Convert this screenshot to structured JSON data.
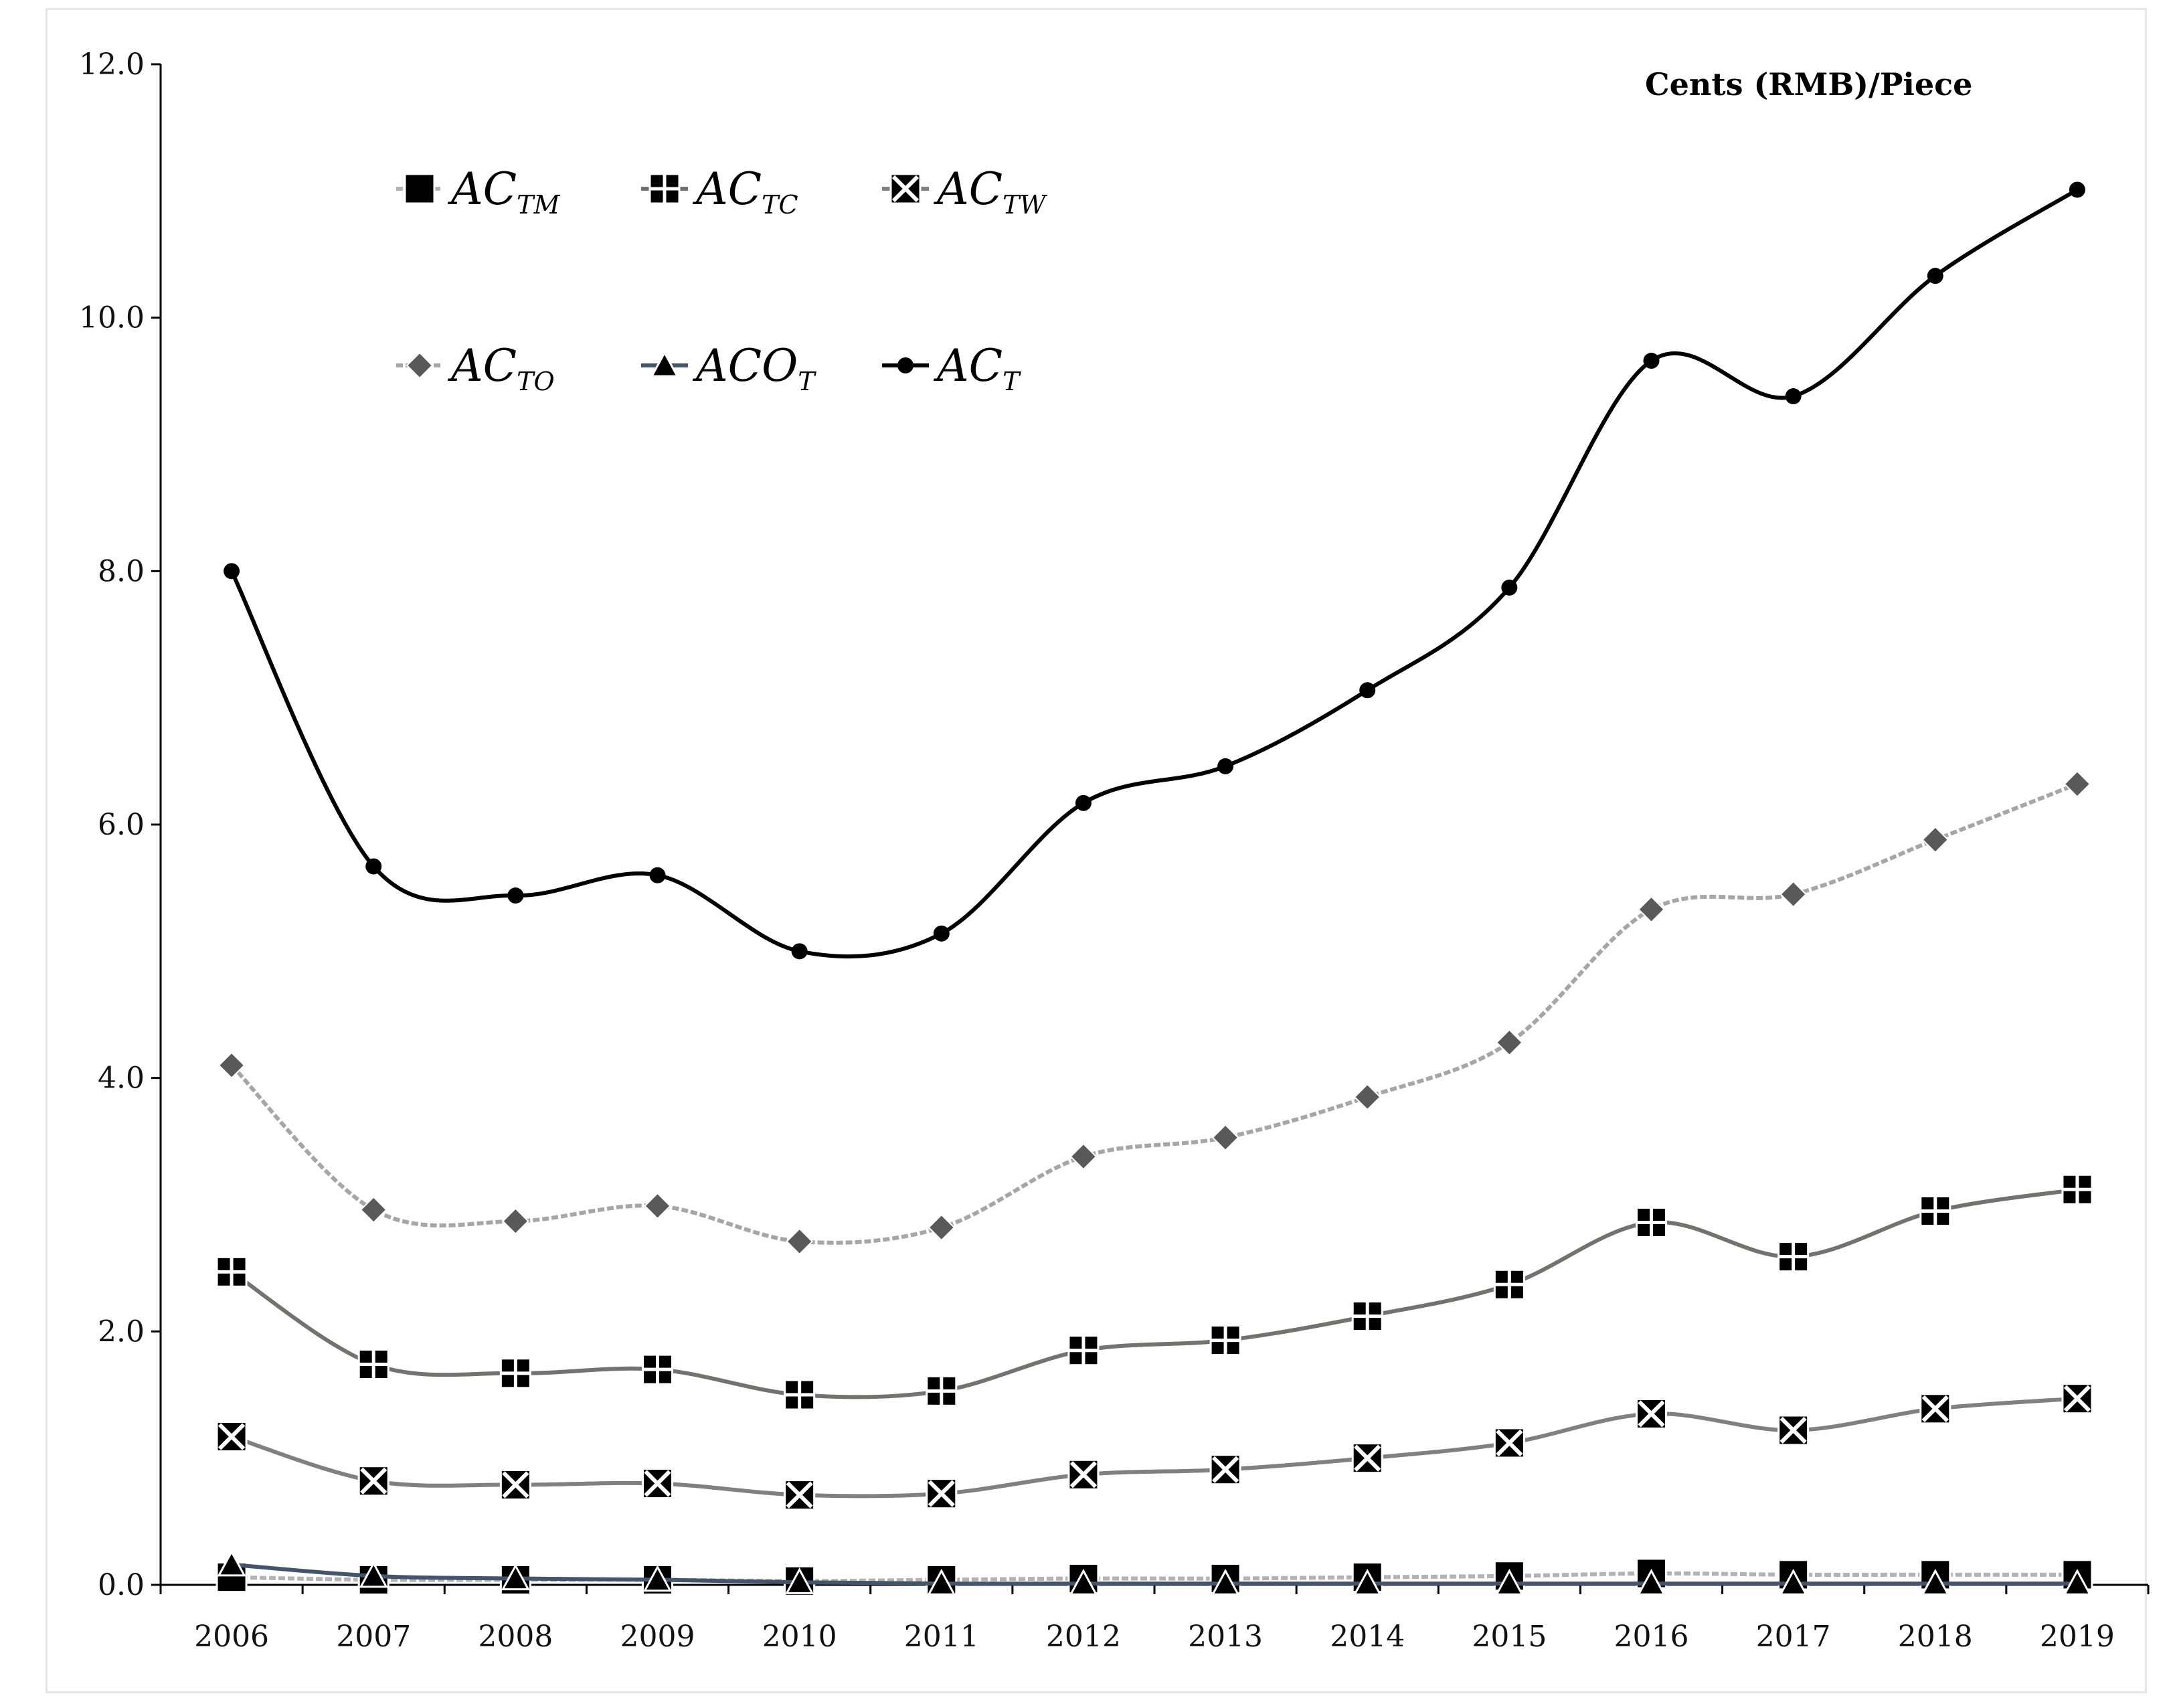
{
  "chart_data": {
    "type": "line",
    "title": "",
    "unit_label": "Cents (RMB)/Piece",
    "xlabel": "",
    "ylabel": "",
    "ylim": [
      0,
      12
    ],
    "y_ticks": [
      "0.0",
      "2.0",
      "4.0",
      "6.0",
      "8.0",
      "10.0",
      "12.0"
    ],
    "categories": [
      "2006",
      "2007",
      "2008",
      "2009",
      "2010",
      "2011",
      "2012",
      "2013",
      "2014",
      "2015",
      "2016",
      "2017",
      "2018",
      "2019"
    ],
    "grid": false,
    "legend_position": "top-left",
    "series": [
      {
        "key": "tm",
        "name": "AC",
        "subscript": "TM",
        "marker": "square",
        "color": "#b3b3b3",
        "dash": "dashed",
        "values": [
          0.06,
          0.04,
          0.04,
          0.04,
          0.03,
          0.04,
          0.05,
          0.05,
          0.06,
          0.07,
          0.09,
          0.08,
          0.08,
          0.08
        ]
      },
      {
        "key": "tc",
        "name": "AC",
        "subscript": "TC",
        "marker": "square-plus",
        "color": "#767171",
        "dash": "solid",
        "values": [
          2.47,
          1.74,
          1.67,
          1.7,
          1.5,
          1.53,
          1.85,
          1.93,
          2.12,
          2.37,
          2.86,
          2.59,
          2.95,
          3.12
        ]
      },
      {
        "key": "tw",
        "name": "AC",
        "subscript": "TW",
        "marker": "square-x",
        "color": "#808080",
        "dash": "solid",
        "values": [
          1.17,
          0.82,
          0.79,
          0.8,
          0.71,
          0.72,
          0.87,
          0.91,
          1.0,
          1.12,
          1.35,
          1.22,
          1.39,
          1.47
        ]
      },
      {
        "key": "to",
        "name": "AC",
        "subscript": "TO",
        "marker": "diamond",
        "color": "#a6a6a6",
        "dash": "dashed",
        "values": [
          4.1,
          2.96,
          2.87,
          2.99,
          2.71,
          2.82,
          3.38,
          3.53,
          3.85,
          4.28,
          5.33,
          5.45,
          5.88,
          6.32
        ]
      },
      {
        "key": "co",
        "name": "ACO",
        "subscript": "T",
        "marker": "triangle",
        "color": "#44546a",
        "dash": "solid",
        "values": [
          0.16,
          0.07,
          0.05,
          0.04,
          0.02,
          0.01,
          0.01,
          0.01,
          0.01,
          0.01,
          0.01,
          0.01,
          0.01,
          0.01
        ]
      },
      {
        "key": "t",
        "name": "AC",
        "subscript": "T",
        "marker": "circle",
        "color": "#000000",
        "dash": "solid",
        "values": [
          8.0,
          5.67,
          5.44,
          5.6,
          5.0,
          5.14,
          6.17,
          6.46,
          7.06,
          7.87,
          9.66,
          9.38,
          10.33,
          11.01
        ]
      }
    ]
  }
}
